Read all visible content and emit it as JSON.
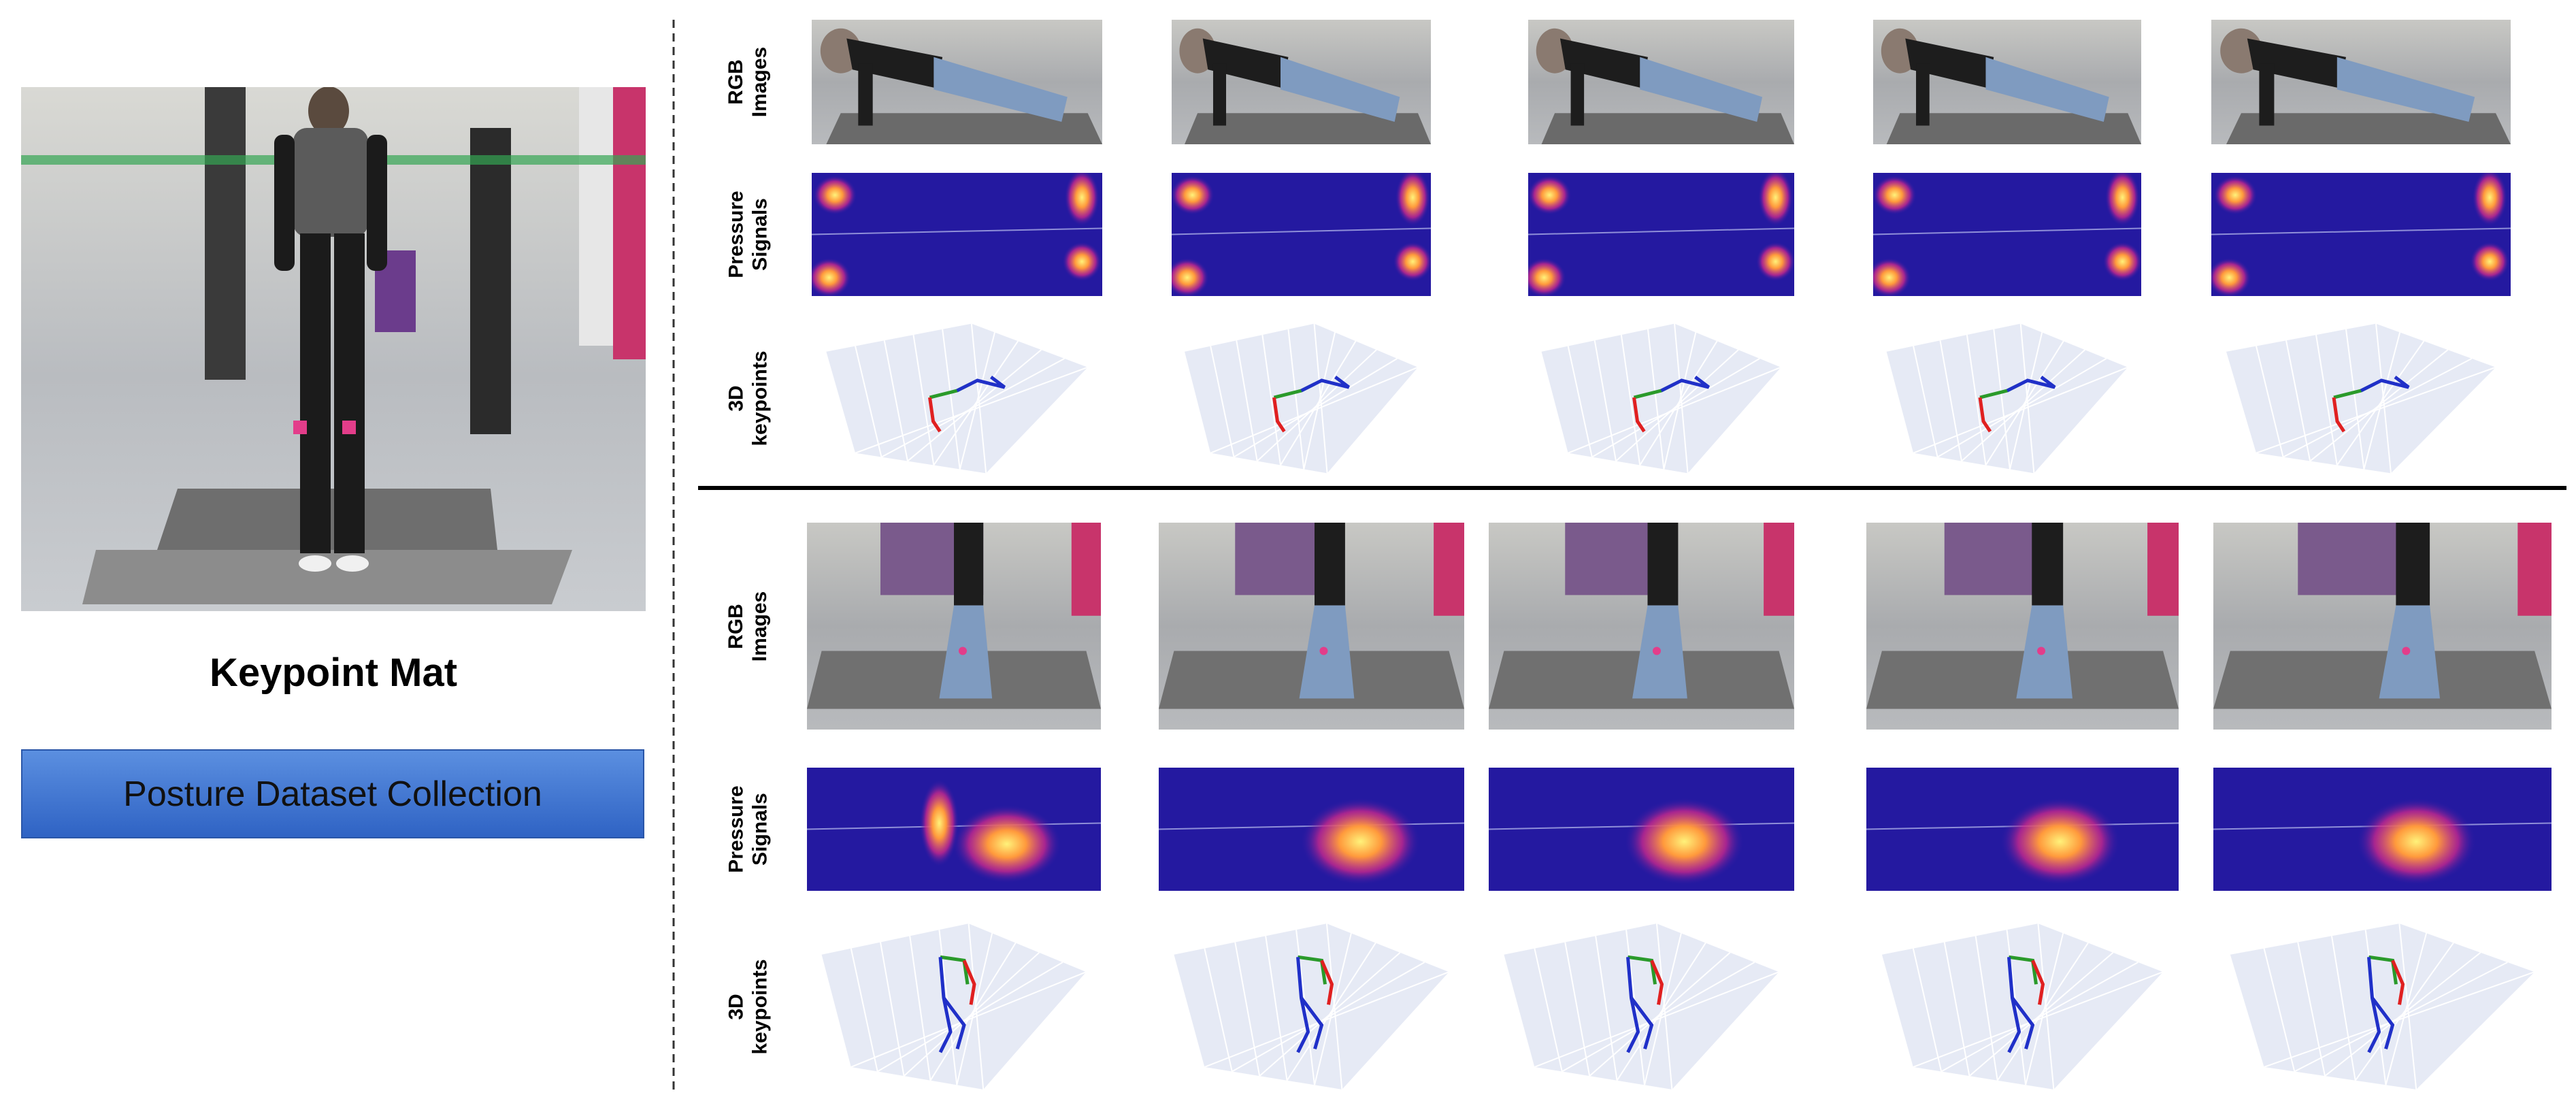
{
  "left_panel": {
    "title": "Keypoint Mat",
    "button": "Posture Dataset Collection"
  },
  "sections": [
    {
      "row_labels": [
        "RGB Images",
        "Pressure Signals",
        "3D keypoints"
      ]
    },
    {
      "row_labels": [
        "RGB Images",
        "Pressure Signals",
        "3D keypoints"
      ]
    }
  ]
}
